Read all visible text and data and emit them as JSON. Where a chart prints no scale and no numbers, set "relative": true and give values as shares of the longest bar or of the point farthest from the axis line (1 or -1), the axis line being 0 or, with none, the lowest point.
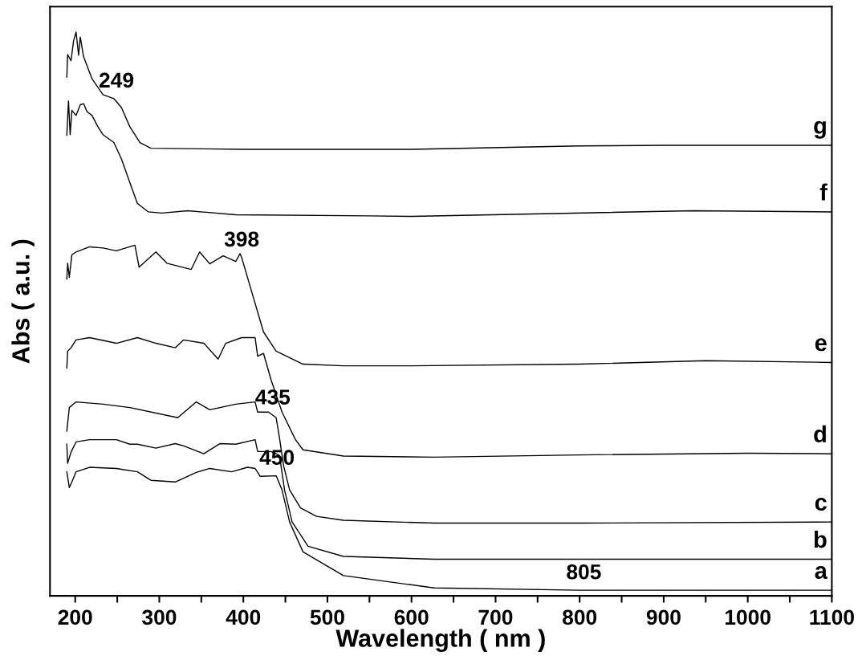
{
  "chart_data": {
    "type": "line",
    "relative": true,
    "xlabel": "Wavelength ( nm )",
    "ylabel": "Abs ( a.u. )",
    "xlim": [
      170,
      1100
    ],
    "xticks": [
      200,
      {
        "value": 250,
        "label": null
      },
      300,
      {
        "value": 350,
        "label": null
      },
      400,
      {
        "value": 450,
        "label": null
      },
      500,
      {
        "value": 550,
        "label": null
      },
      600,
      {
        "value": 650,
        "label": null
      },
      700,
      {
        "value": 750,
        "label": null
      },
      800,
      {
        "value": 850,
        "label": null
      },
      900,
      {
        "value": 950,
        "label": null
      },
      1000,
      {
        "value": 1050,
        "label": null
      },
      1100
    ],
    "grid": false,
    "legend": false,
    "marker": "none",
    "line_style": "solid",
    "series": [
      {
        "name": "g",
        "color": "#000000",
        "x": [
          190,
          191,
          195,
          198,
          201,
          204,
          206,
          210,
          220,
          233,
          246,
          255,
          265,
          277,
          290,
          400,
          600,
          800,
          900,
          1000,
          1100
        ],
        "values": [
          0.92,
          0.96,
          0.949,
          0.984,
          1.0,
          0.959,
          0.991,
          0.956,
          0.917,
          0.889,
          0.882,
          0.866,
          0.832,
          0.804,
          0.794,
          0.792,
          0.792,
          0.798,
          0.799,
          0.799,
          0.799
        ]
      },
      {
        "name": "f",
        "color": "#000000",
        "x": [
          190,
          192,
          194,
          196,
          201,
          206,
          210,
          214,
          220,
          227,
          233,
          246,
          255,
          265,
          274,
          287,
          303,
          334,
          391,
          551,
          600,
          934,
          1100
        ],
        "values": [
          0.817,
          0.878,
          0.818,
          0.861,
          0.852,
          0.871,
          0.873,
          0.859,
          0.852,
          0.832,
          0.818,
          0.804,
          0.775,
          0.733,
          0.696,
          0.681,
          0.679,
          0.683,
          0.676,
          0.674,
          0.673,
          0.683,
          0.681
        ]
      },
      {
        "name": "e",
        "color": "#000000",
        "x": [
          190,
          191,
          193,
          196,
          201,
          217,
          233,
          249,
          271,
          276,
          296,
          309,
          338,
          348,
          360,
          376,
          391,
          396,
          398,
          410,
          424,
          439,
          471,
          519,
          600,
          800,
          950,
          1100
        ],
        "values": [
          0.562,
          0.59,
          0.565,
          0.605,
          0.61,
          0.619,
          0.617,
          0.612,
          0.622,
          0.583,
          0.61,
          0.59,
          0.579,
          0.61,
          0.589,
          0.603,
          0.593,
          0.607,
          0.6,
          0.539,
          0.468,
          0.434,
          0.411,
          0.408,
          0.408,
          0.411,
          0.417,
          0.414
        ]
      },
      {
        "name": "d",
        "color": "#000000",
        "x": [
          190,
          191,
          195,
          201,
          217,
          249,
          274,
          296,
          319,
          329,
          353,
          370,
          379,
          398,
          414,
          417,
          424,
          433,
          446,
          462,
          471,
          519,
          627,
          800,
          1000,
          1100
        ],
        "values": [
          0.404,
          0.434,
          0.44,
          0.454,
          0.458,
          0.448,
          0.458,
          0.448,
          0.44,
          0.454,
          0.448,
          0.42,
          0.448,
          0.458,
          0.458,
          0.425,
          0.43,
          0.383,
          0.326,
          0.277,
          0.259,
          0.248,
          0.246,
          0.25,
          0.253,
          0.252
        ]
      },
      {
        "name": "c",
        "color": "#000000",
        "x": [
          190,
          193,
          201,
          233,
          265,
          322,
          344,
          360,
          391,
          414,
          417,
          430,
          439,
          443,
          448,
          455,
          468,
          487,
          519,
          627,
          800,
          1100
        ],
        "values": [
          0.292,
          0.334,
          0.344,
          0.34,
          0.334,
          0.316,
          0.344,
          0.33,
          0.34,
          0.344,
          0.326,
          0.326,
          0.316,
          0.28,
          0.23,
          0.188,
          0.156,
          0.141,
          0.134,
          0.129,
          0.129,
          0.131
        ]
      },
      {
        "name": "b",
        "color": "#000000",
        "x": [
          190,
          191,
          195,
          201,
          217,
          249,
          265,
          274,
          296,
          319,
          329,
          353,
          372,
          391,
          414,
          417,
          433,
          439,
          443,
          449,
          458,
          477,
          519,
          627,
          1100
        ],
        "values": [
          0.269,
          0.235,
          0.255,
          0.273,
          0.277,
          0.277,
          0.269,
          0.269,
          0.262,
          0.27,
          0.266,
          0.252,
          0.27,
          0.269,
          0.277,
          0.256,
          0.256,
          0.252,
          0.249,
          0.188,
          0.131,
          0.088,
          0.07,
          0.065,
          0.065
        ]
      },
      {
        "name": "a",
        "color": "#000000",
        "x": [
          190,
          193,
          196,
          201,
          217,
          249,
          274,
          290,
          319,
          344,
          360,
          386,
          405,
          414,
          420,
          439,
          446,
          455,
          471,
          519,
          627,
          800,
          1100
        ],
        "values": [
          0.22,
          0.192,
          0.202,
          0.22,
          0.228,
          0.226,
          0.22,
          0.205,
          0.202,
          0.219,
          0.226,
          0.22,
          0.228,
          0.226,
          0.212,
          0.213,
          0.188,
          0.131,
          0.078,
          0.036,
          0.014,
          0.01,
          0.01
        ]
      }
    ],
    "annotations": [
      {
        "text": "249",
        "x": 249,
        "y": 0.882
      },
      {
        "text": "398",
        "x": 398,
        "y": 0.6
      },
      {
        "text": "435",
        "x": 435,
        "y": 0.32
      },
      {
        "text": "450",
        "x": 440,
        "y": 0.213
      },
      {
        "text": "805",
        "x": 805,
        "y": 0.01
      }
    ]
  }
}
